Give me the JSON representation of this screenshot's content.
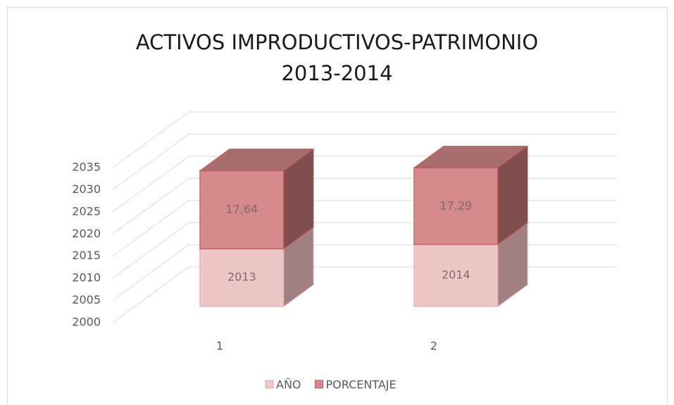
{
  "chart_data": {
    "type": "bar3d_stacked",
    "title": "ACTIVOS IMPRODUCTIVOS-PATRIMONIO\n2013-2014",
    "categories": [
      "1",
      "2"
    ],
    "series": [
      {
        "name": "AÑO",
        "color": "#efc6c6",
        "values": [
          2013,
          2014
        ]
      },
      {
        "name": "PORCENTAJE",
        "color": "#d48a8a",
        "values": [
          17.64,
          17.29
        ],
        "value_labels": [
          "17,64",
          "17,29"
        ]
      }
    ],
    "ylim": [
      2000,
      2035
    ],
    "yticks": [
      2000,
      2005,
      2010,
      2015,
      2020,
      2025,
      2030,
      2035
    ],
    "grid": true,
    "legend": "bottom"
  }
}
